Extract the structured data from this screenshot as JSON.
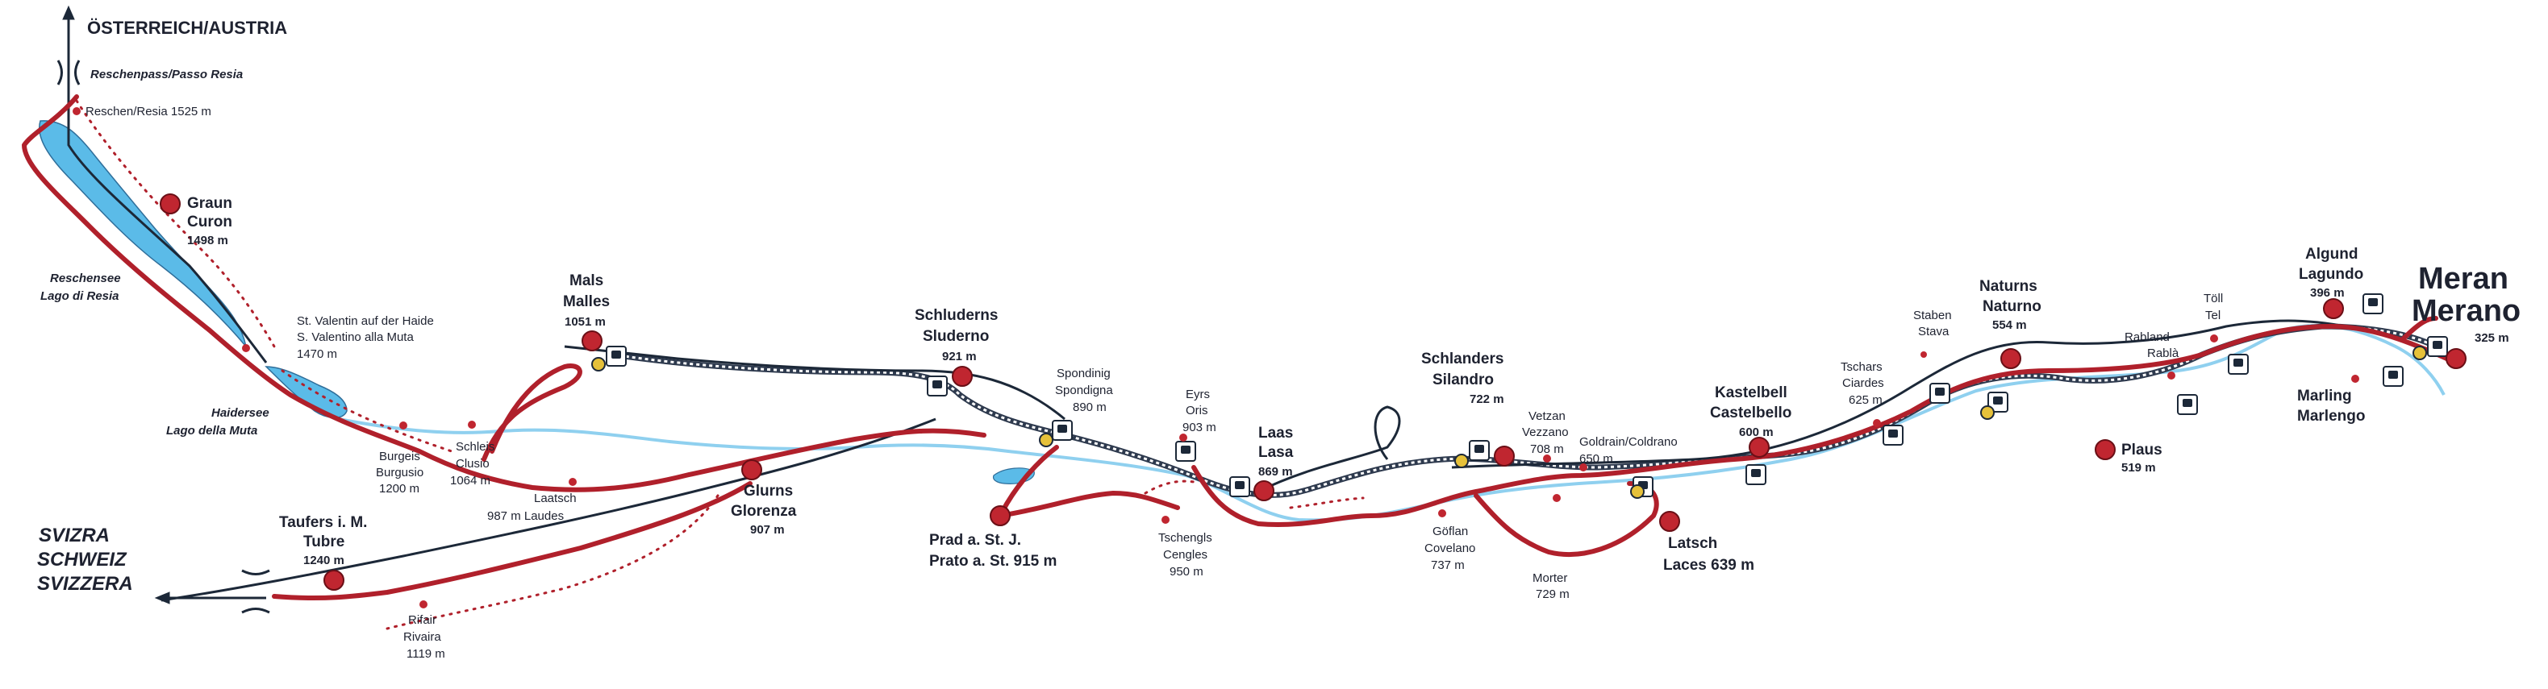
{
  "colors": {
    "water": "#5bbbe8",
    "river": "#8fd0ef",
    "road": "#b0202b",
    "rail_dark": "#1c2838",
    "railway": "#2e3a4e",
    "town": "#c02630",
    "text": "#1e2230"
  },
  "borders": {
    "austria": "ÖSTERREICH/AUSTRIA",
    "switzerland": [
      "SVIZRA",
      "SCHWEIZ",
      "SVIZZERA"
    ]
  },
  "passes": {
    "reschenpass": "Reschenpass/Passo Resia"
  },
  "lakes": {
    "reschensee": [
      "Reschensee",
      "Lago di Resia"
    ],
    "haidersee": [
      "Haidersee",
      "Lago della Muta"
    ]
  },
  "places": {
    "reschen": [
      "Reschen/Resia 1525 m"
    ],
    "graun": [
      "Graun",
      "Curon",
      "1498 m"
    ],
    "st_valentin": [
      "St. Valentin auf der Haide",
      "S. Valentino alla Muta",
      "1470 m"
    ],
    "mals": [
      "Mals",
      "Malles",
      "1051 m"
    ],
    "burgeis": [
      "Burgeis",
      "Burgusio",
      "1200 m"
    ],
    "schleis": [
      "Schleis",
      "Clusio",
      "1064 m"
    ],
    "laatsch": [
      "Laatsch",
      "987 m Laudes"
    ],
    "glurns": [
      "Glurns",
      "Glorenza",
      "907 m"
    ],
    "taufers": [
      "Taufers i. M.",
      "Tubre",
      "1240 m"
    ],
    "rifair": [
      "Rifair",
      "Rivaira",
      "1119 m"
    ],
    "schluderns": [
      "Schluderns",
      "Sluderno",
      "921 m"
    ],
    "spondinig": [
      "Spondinig",
      "Spondigna",
      "890 m"
    ],
    "prad": [
      "Prad a. St. J.",
      "Prato a. St. 915 m"
    ],
    "eyrs": [
      "Eyrs",
      "Oris",
      "903 m"
    ],
    "tschengls": [
      "Tschengls",
      "Cengles",
      "950 m"
    ],
    "laas": [
      "Laas",
      "Lasa",
      "869 m"
    ],
    "schlanders": [
      "Schlanders",
      "Silandro",
      "722 m"
    ],
    "goeflan": [
      "Göflan",
      "Covelano",
      "737 m"
    ],
    "vetzan": [
      "Vetzan",
      "Vezzano",
      "708 m"
    ],
    "goldrain": [
      "Goldrain/Coldrano",
      "650 m"
    ],
    "morter": [
      "Morter",
      "729 m"
    ],
    "kastelbell": [
      "Kastelbell",
      "Castelbello",
      "600 m"
    ],
    "latsch": [
      "Latsch",
      "Laces 639 m"
    ],
    "tschars": [
      "Tschars",
      "Ciardes",
      "625 m"
    ],
    "staben": [
      "Staben",
      "Stava"
    ],
    "naturns": [
      "Naturns",
      "Naturno",
      "554 m"
    ],
    "plaus": [
      "Plaus",
      "519 m"
    ],
    "rabland": [
      "Rabland",
      "Rablà"
    ],
    "toell": [
      "Töll",
      "Tel"
    ],
    "algund": [
      "Algund",
      "Lagundo",
      "396 m"
    ],
    "meran": [
      "Meran",
      "Merano",
      "325 m"
    ],
    "marling": [
      "Marling",
      "Marlengo"
    ]
  }
}
